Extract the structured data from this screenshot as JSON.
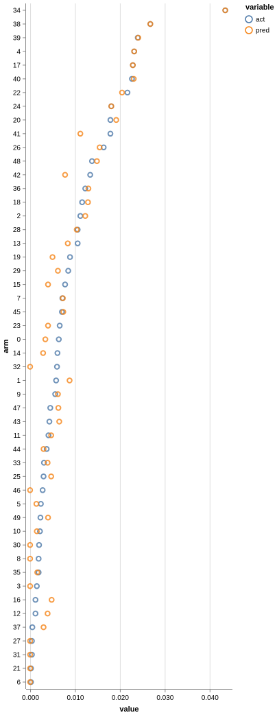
{
  "chart_data": {
    "type": "scatter",
    "xlabel": "value",
    "ylabel": "arm",
    "xlim": [
      -0.001,
      0.045
    ],
    "xticks": [
      0.0,
      0.01,
      0.02,
      0.03,
      0.04
    ],
    "xtick_labels": [
      "0.000",
      "0.010",
      "0.020",
      "0.030",
      "0.040"
    ],
    "grid": true,
    "legend": {
      "title": "variable",
      "position": "top-right"
    },
    "categories": [
      "34",
      "38",
      "39",
      "4",
      "17",
      "40",
      "22",
      "24",
      "20",
      "41",
      "26",
      "48",
      "42",
      "36",
      "18",
      "2",
      "28",
      "13",
      "19",
      "29",
      "15",
      "7",
      "45",
      "23",
      "0",
      "14",
      "32",
      "1",
      "9",
      "47",
      "43",
      "11",
      "44",
      "33",
      "25",
      "46",
      "5",
      "49",
      "10",
      "30",
      "8",
      "35",
      "3",
      "16",
      "12",
      "37",
      "27",
      "31",
      "21",
      "6"
    ],
    "series": [
      {
        "name": "act",
        "color": "#4c78a8",
        "values": [
          0.0434,
          0.0267,
          0.0239,
          0.0231,
          0.0228,
          0.0226,
          0.0216,
          0.018,
          0.0178,
          0.0178,
          0.0163,
          0.0137,
          0.0133,
          0.0122,
          0.0115,
          0.0111,
          0.0105,
          0.0105,
          0.0088,
          0.0084,
          0.0077,
          0.0071,
          0.007,
          0.0065,
          0.0063,
          0.006,
          0.0059,
          0.0057,
          0.0055,
          0.0044,
          0.0042,
          0.004,
          0.0036,
          0.003,
          0.0029,
          0.0027,
          0.0023,
          0.0022,
          0.0021,
          0.0019,
          0.0018,
          0.0018,
          0.0014,
          0.0011,
          0.0011,
          0.0004,
          0.0003,
          0.0003,
          0.0001,
          0.0001
        ]
      },
      {
        "name": "pred",
        "color": "#f58518",
        "values": [
          0.0434,
          0.0267,
          0.024,
          0.0231,
          0.0228,
          0.023,
          0.0204,
          0.018,
          0.0191,
          0.0111,
          0.0154,
          0.0148,
          0.0077,
          0.0129,
          0.0128,
          0.0122,
          0.0103,
          0.0083,
          0.0049,
          0.0061,
          0.0039,
          0.0072,
          0.0073,
          0.0039,
          0.0033,
          0.0028,
          -0.0001,
          0.0087,
          0.0061,
          0.0062,
          0.0064,
          0.0046,
          0.0029,
          0.0038,
          0.0046,
          -0.0001,
          0.0013,
          0.0039,
          0.0014,
          -0.0001,
          -0.0001,
          0.0015,
          -0.0001,
          0.0047,
          0.0038,
          0.0029,
          -0.0001,
          -0.0001,
          -0.0001,
          -0.0001
        ]
      }
    ]
  }
}
